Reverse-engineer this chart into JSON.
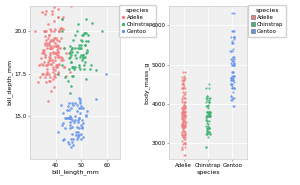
{
  "plot1": {
    "xlabel": "bill_length_mm",
    "ylabel": "bill_depth_mm",
    "xlim": [
      30,
      65
    ],
    "ylim": [
      12.5,
      21.5
    ],
    "yticks": [
      15.0,
      17.5,
      20.0
    ],
    "xticks": [
      40,
      50,
      60
    ]
  },
  "plot2": {
    "xlabel": "species",
    "ylabel": "body_mass_g",
    "xlim": [
      -0.6,
      2.6
    ],
    "ylim": [
      2600,
      6500
    ],
    "yticks": [
      3000,
      4000,
      5000,
      6000
    ],
    "xticks": [
      0,
      1,
      2
    ],
    "xticklabels": [
      "Adelie",
      "Chinstrap",
      "Gentoo"
    ]
  },
  "colors": {
    "Adelie": "#F08080",
    "Chinstrap": "#3CB371",
    "Gentoo": "#6495ED"
  },
  "background_color": "#ffffff",
  "panel_color": "#f0f0f0",
  "grid_color": "#ffffff",
  "legend1_title": "species",
  "legend1_labels": [
    "Adelie",
    "Chinstrap",
    "Gentoo"
  ],
  "legend2_title": "species",
  "legend2_labels": [
    "Adelie",
    "Chinstrap",
    "Gentoo"
  ],
  "adelie_bill_length": [
    39.1,
    39.5,
    40.3,
    36.7,
    39.3,
    38.9,
    39.2,
    34.1,
    42.0,
    37.8,
    37.8,
    41.1,
    38.6,
    34.6,
    36.6,
    38.7,
    42.5,
    34.4,
    46.0,
    37.8,
    37.7,
    35.9,
    38.2,
    38.8,
    35.3,
    40.6,
    40.5,
    37.9,
    40.5,
    39.5,
    37.2,
    39.5,
    40.9,
    36.4,
    39.2,
    38.8,
    42.2,
    37.6,
    39.8,
    36.5,
    40.8,
    36.0,
    44.1,
    37.0,
    39.6,
    41.1,
    37.5,
    36.0,
    42.3,
    39.6,
    40.1,
    35.0,
    42.0,
    34.5,
    41.4,
    39.0,
    40.6,
    36.5,
    37.6,
    35.7,
    41.3,
    37.6,
    41.1,
    36.4,
    41.6,
    35.5,
    41.1,
    35.9,
    41.8,
    33.5,
    39.7,
    39.6,
    45.8,
    35.5,
    42.8,
    40.9,
    37.2,
    36.2,
    42.1,
    34.6,
    42.9,
    36.7,
    35.1,
    37.3,
    41.3,
    36.3,
    36.9,
    38.3,
    38.9,
    35.7,
    41.1,
    34.0,
    39.6,
    36.2,
    40.8,
    38.1,
    40.3,
    33.1,
    43.2,
    35.0,
    41.0,
    37.7,
    37.8,
    37.9,
    39.7,
    38.6,
    38.2,
    38.1,
    43.2,
    38.1,
    45.6,
    39.7,
    42.2,
    39.6,
    42.7,
    38.6,
    37.3,
    35.7,
    41.1,
    36.2,
    37.7,
    40.2,
    41.4,
    35.2,
    40.6,
    38.8,
    41.5,
    39.0,
    44.1,
    38.5,
    43.1,
    36.8,
    37.5,
    38.1,
    41.1,
    35.6,
    40.2,
    37.0,
    39.7,
    40.2,
    40.6,
    32.1,
    40.7,
    37.3,
    39.0,
    39.2,
    36.6,
    36.0,
    37.8,
    36.0,
    41.5
  ],
  "adelie_bill_depth": [
    18.7,
    17.4,
    18.0,
    19.3,
    20.6,
    17.8,
    19.6,
    18.1,
    20.2,
    17.1,
    17.3,
    17.6,
    21.2,
    21.1,
    17.8,
    19.0,
    20.7,
    18.4,
    21.5,
    18.3,
    18.7,
    19.2,
    18.1,
    17.2,
    18.9,
    18.6,
    17.9,
    18.6,
    18.9,
    16.7,
    18.1,
    20.0,
    18.8,
    21.2,
    19.1,
    19.5,
    18.5,
    19.8,
    20.1,
    17.6,
    21.3,
    21.0,
    18.7,
    20.4,
    17.7,
    18.6,
    19.3,
    20.0,
    18.4,
    18.7,
    19.1,
    18.8,
    20.2,
    18.7,
    19.4,
    18.2,
    19.2,
    18.0,
    18.3,
    18.6,
    20.0,
    19.8,
    20.8,
    17.5,
    19.0,
    18.7,
    20.8,
    19.7,
    20.1,
    18.0,
    19.6,
    19.3,
    18.8,
    20.0,
    20.1,
    18.8,
    19.6,
    20.0,
    19.6,
    17.5,
    20.8,
    19.0,
    17.5,
    17.5,
    18.5,
    18.0,
    15.9,
    19.1,
    18.8,
    18.5,
    18.0,
    17.3,
    17.5,
    19.5,
    17.5,
    19.5,
    19.1,
    17.0,
    17.9,
    18.0,
    19.1,
    18.4,
    20.1,
    19.0,
    17.3,
    19.5,
    19.0,
    20.0,
    17.9,
    16.5,
    17.6,
    18.5,
    18.3,
    18.3,
    18.3,
    21.0,
    19.2,
    17.3,
    18.5,
    17.0,
    19.4,
    17.9,
    20.0,
    18.9,
    19.5,
    19.4,
    20.0,
    17.6,
    17.4,
    18.3,
    19.0,
    19.2,
    18.5,
    18.1,
    19.0,
    18.2,
    19.6,
    18.2,
    18.7,
    18.7,
    18.0,
    20.0,
    19.1,
    17.1,
    17.9,
    21.4,
    17.5,
    20.0,
    19.0,
    19.3,
    18.1
  ],
  "chinstrap_bill_length": [
    46.5,
    50.0,
    51.3,
    45.4,
    52.7,
    45.2,
    46.1,
    51.3,
    46.0,
    51.3,
    46.6,
    51.7,
    47.0,
    52.0,
    45.9,
    50.5,
    50.3,
    58.0,
    46.4,
    49.2,
    42.4,
    48.5,
    43.2,
    50.6,
    46.7,
    52.0,
    50.5,
    49.5,
    46.4,
    52.8,
    40.9,
    54.2,
    42.5,
    51.0,
    49.7,
    47.5,
    47.6,
    52.0,
    46.9,
    53.5,
    49.0,
    46.2,
    50.9,
    45.5,
    50.9,
    50.8,
    50.1,
    49.0,
    51.5,
    49.8,
    48.1,
    51.4,
    45.7,
    50.7,
    42.5,
    52.2,
    45.2,
    49.3,
    50.2,
    45.6,
    51.9,
    46.8,
    45.7,
    55.8,
    43.5,
    49.6,
    54.0,
    47.4,
    46.0,
    48.7,
    50.0,
    47.6,
    46.0,
    48.7,
    45.0,
    48.4,
    50.0,
    52.1,
    46.2
  ],
  "chinstrap_bill_depth": [
    17.9,
    19.5,
    19.2,
    18.7,
    19.8,
    17.8,
    18.2,
    18.2,
    18.9,
    19.9,
    19.5,
    20.7,
    17.8,
    19.9,
    18.2,
    18.4,
    19.4,
    20.0,
    19.0,
    19.2,
    20.7,
    20.0,
    19.0,
    18.6,
    17.9,
    19.4,
    19.8,
    17.8,
    18.8,
    19.4,
    17.5,
    20.5,
    18.0,
    17.8,
    19.0,
    18.6,
    17.9,
    17.2,
    17.4,
    17.8,
    19.0,
    17.4,
    18.0,
    16.4,
    19.9,
    18.6,
    19.8,
    17.9,
    19.2,
    18.6,
    18.4,
    18.5,
    18.7,
    18.5,
    20.0,
    18.8,
    18.4,
    18.0,
    18.3,
    19.1,
    18.7,
    17.9,
    18.5,
    17.7,
    17.3,
    18.5,
    18.0,
    19.0,
    16.8,
    19.0,
    19.0,
    19.8,
    18.6,
    20.4,
    17.1,
    18.8,
    19.2,
    18.9,
    19.0
  ],
  "gentoo_bill_length": [
    46.1,
    50.0,
    48.7,
    50.0,
    47.6,
    46.5,
    45.4,
    46.7,
    43.3,
    46.8,
    40.9,
    49.0,
    45.5,
    48.4,
    45.8,
    49.3,
    42.0,
    49.2,
    46.2,
    48.7,
    50.2,
    45.1,
    46.5,
    46.3,
    42.9,
    46.1,
    44.5,
    47.8,
    48.2,
    50.0,
    47.3,
    42.8,
    45.1,
    59.6,
    49.1,
    48.4,
    42.6,
    44.4,
    44.0,
    48.7,
    42.7,
    49.6,
    45.3,
    49.6,
    50.5,
    43.6,
    45.5,
    50.5,
    44.9,
    45.9,
    50.8,
    46.2,
    52.0,
    50.2,
    45.2,
    49.3,
    50.2,
    45.6,
    51.9,
    46.8,
    45.7,
    55.8,
    49.5,
    48.1,
    49.6,
    43.6,
    48.8,
    47.5,
    50.0,
    47.6,
    46.0,
    48.7,
    45.0,
    48.4,
    50.0,
    52.1,
    49.3
  ],
  "gentoo_bill_depth": [
    13.2,
    15.6,
    14.8,
    14.0,
    15.0,
    14.8,
    14.9,
    13.3,
    13.7,
    15.7,
    14.1,
    14.9,
    14.3,
    14.4,
    14.7,
    14.3,
    15.7,
    16.1,
    15.8,
    13.9,
    14.8,
    13.4,
    14.4,
    13.5,
    14.6,
    13.7,
    14.9,
    13.9,
    15.7,
    14.5,
    14.7,
    15.2,
    14.9,
    17.5,
    15.5,
    15.3,
    14.5,
    15.4,
    14.9,
    14.1,
    13.6,
    15.9,
    15.4,
    16.0,
    13.8,
    14.3,
    15.0,
    15.5,
    15.6,
    14.9,
    14.6,
    14.0,
    15.1,
    14.3,
    15.8,
    13.9,
    14.4,
    14.5,
    15.0,
    13.7,
    14.9,
    16.0,
    15.2,
    14.1,
    15.8,
    14.9,
    13.8,
    14.8,
    15.5,
    15.8,
    15.5,
    14.7,
    13.5,
    13.7,
    13.7,
    15.3,
    14.9
  ],
  "adelie_body_mass": [
    3750,
    3800,
    3250,
    3450,
    3650,
    3625,
    4675,
    3475,
    4250,
    3300,
    3700,
    3200,
    3800,
    4400,
    3700,
    3450,
    4500,
    3325,
    4200,
    3400,
    3600,
    3800,
    3950,
    3800,
    3800,
    3550,
    3200,
    3150,
    3950,
    3250,
    3900,
    3300,
    3900,
    3825,
    4150,
    3950,
    3550,
    3300,
    4650,
    3150,
    3900,
    3100,
    4400,
    3000,
    4600,
    3425,
    2975,
    3450,
    4150,
    3500,
    4300,
    3450,
    4050,
    2900,
    3700,
    3550,
    3800,
    2850,
    3750,
    3150,
    4400,
    3600,
    3900,
    3850,
    4800,
    2700,
    4500,
    3950,
    3650,
    3550,
    3500,
    3425,
    3050,
    3725,
    3000,
    3650,
    4250,
    3475,
    3450,
    3750,
    3700,
    4000,
    4500,
    3475,
    3425,
    3750,
    3725,
    3200,
    3250,
    3750,
    3800,
    3700,
    3700,
    4700,
    4400,
    4050,
    4600,
    3375,
    4050,
    4600,
    3200,
    4450,
    3500,
    3800,
    3700,
    4550,
    3200,
    4150,
    3350,
    4100,
    3600,
    3900,
    3300,
    4650,
    3150,
    3900,
    3100,
    4400,
    3000,
    4600,
    3425,
    2975,
    3450,
    4150,
    3500,
    4300,
    3450,
    4050,
    2900,
    3700,
    3550,
    3800,
    2850,
    3750,
    3150,
    4400,
    3600,
    3900,
    3850,
    4800,
    2700,
    4500,
    3950,
    3650,
    3550,
    3500
  ],
  "chinstrap_body_mass": [
    3500,
    3900,
    3650,
    3525,
    3725,
    3950,
    3250,
    3750,
    4150,
    3700,
    3800,
    3775,
    3700,
    4050,
    3575,
    4050,
    3300,
    3700,
    3450,
    4400,
    3600,
    3400,
    2900,
    3800,
    3300,
    4150,
    3400,
    3800,
    3700,
    4200,
    3400,
    3400,
    3800,
    3300,
    3700,
    3950,
    3250,
    4100,
    3350,
    4500,
    3700,
    3975,
    3150,
    3250,
    3700,
    3800,
    3250,
    3750,
    4150,
    3700,
    3800,
    3775,
    3700,
    4050,
    3575,
    4050,
    3300,
    3700,
    3450,
    4400,
    3600,
    3400,
    2900,
    3800,
    3300,
    4150,
    3400,
    3800,
    3700,
    4200,
    3400,
    3400,
    3800,
    3300,
    3700,
    3950,
    3250,
    4100,
    3350
  ],
  "gentoo_body_mass": [
    4500,
    5700,
    4450,
    5700,
    5400,
    4550,
    4800,
    5200,
    4400,
    5150,
    4650,
    5550,
    4650,
    5850,
    4200,
    5850,
    4150,
    6300,
    4800,
    5350,
    5700,
    5000,
    4400,
    5050,
    5000,
    5100,
    4100,
    4700,
    4500,
    4600,
    4600,
    4400,
    5000,
    5100,
    4650,
    4600,
    5050,
    4500,
    4150,
    5650,
    3950,
    5550,
    4300,
    5150,
    5350,
    3950,
    5700,
    5000,
    5200,
    4700,
    5600,
    4700,
    4800,
    5200,
    4400,
    5150,
    4650,
    5550,
    4650,
    5850,
    4200,
    5850,
    4150,
    6300,
    4800,
    5350,
    5700,
    5000,
    4400,
    5050,
    5000,
    5100,
    4100,
    4700,
    4500,
    4600,
    4600
  ]
}
